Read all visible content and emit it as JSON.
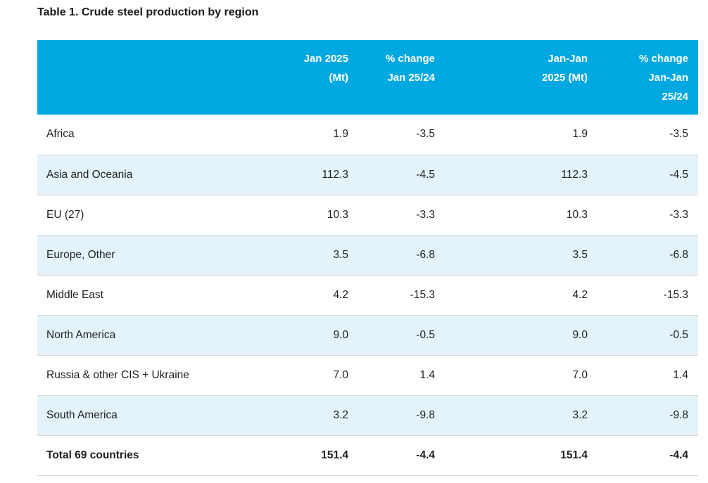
{
  "title": "Table 1. Crude steel production by region",
  "colors": {
    "header_bg": "#00A8E2",
    "header_text": "#FFFFFF",
    "row_alt_bg": "#E4F2FA",
    "row_border": "#D8D8D8",
    "body_text": "#1F1F1F"
  },
  "table": {
    "headers": {
      "region": "",
      "jan_mt": "Jan 2025\n(Mt)",
      "jan_chg": "% change\nJan 25/24",
      "janjan_mt": "Jan-Jan\n2025 (Mt)",
      "janjan_chg": "% change\nJan-Jan\n25/24"
    },
    "rows": [
      {
        "region": "Africa",
        "values": [
          "1.9",
          "-3.5",
          "1.9",
          "-3.5"
        ]
      },
      {
        "region": "Asia and Oceania",
        "values": [
          "112.3",
          "-4.5",
          "112.3",
          "-4.5"
        ]
      },
      {
        "region": "EU (27)",
        "values": [
          "10.3",
          "-3.3",
          "10.3",
          "-3.3"
        ]
      },
      {
        "region": "Europe, Other",
        "values": [
          "3.5",
          "-6.8",
          "3.5",
          "-6.8"
        ]
      },
      {
        "region": "Middle East",
        "values": [
          "4.2",
          "-15.3",
          "4.2",
          "-15.3"
        ]
      },
      {
        "region": "North America",
        "values": [
          "9.0",
          "-0.5",
          "9.0",
          "-0.5"
        ]
      },
      {
        "region": "Russia & other CIS + Ukraine",
        "values": [
          "7.0",
          "1.4",
          "7.0",
          "1.4"
        ]
      },
      {
        "region": "South America",
        "values": [
          "3.2",
          "-9.8",
          "3.2",
          "-9.8"
        ]
      }
    ],
    "total": {
      "region": "Total 69 countries",
      "values": [
        "151.4",
        "-4.4",
        "151.4",
        "-4.4"
      ]
    }
  },
  "chart_data": {
    "type": "table",
    "title": "Table 1. Crude steel production by region",
    "columns": [
      "Region",
      "Jan 2025 (Mt)",
      "% change Jan 25/24",
      "Jan-Jan 2025 (Mt)",
      "% change Jan-Jan 25/24"
    ],
    "rows": [
      [
        "Africa",
        1.9,
        -3.5,
        1.9,
        -3.5
      ],
      [
        "Asia and Oceania",
        112.3,
        -4.5,
        112.3,
        -4.5
      ],
      [
        "EU (27)",
        10.3,
        -3.3,
        10.3,
        -3.3
      ],
      [
        "Europe, Other",
        3.5,
        -6.8,
        3.5,
        -6.8
      ],
      [
        "Middle East",
        4.2,
        -15.3,
        4.2,
        -15.3
      ],
      [
        "North America",
        9.0,
        -0.5,
        9.0,
        -0.5
      ],
      [
        "Russia & other CIS + Ukraine",
        7.0,
        1.4,
        7.0,
        1.4
      ],
      [
        "South America",
        3.2,
        -9.8,
        3.2,
        -9.8
      ],
      [
        "Total 69 countries",
        151.4,
        -4.4,
        151.4,
        -4.4
      ]
    ]
  }
}
